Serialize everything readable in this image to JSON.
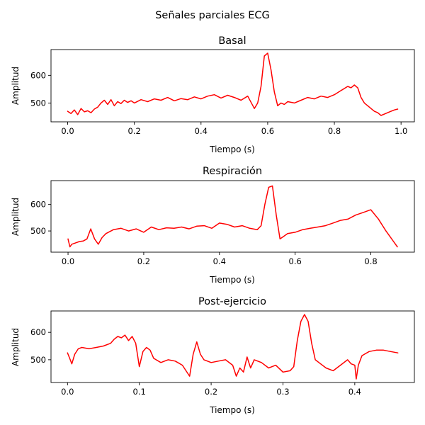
{
  "chart_data": {
    "suptitle": "Señales parciales ECG",
    "color": "#ff0000",
    "panels": [
      {
        "type": "line",
        "title": "Basal",
        "xlabel": "Tiempo (s)",
        "ylabel": "Amplitud",
        "xlim": [
          -0.05,
          1.04
        ],
        "ylim": [
          432,
          693
        ],
        "xticks": [
          0.0,
          0.2,
          0.4,
          0.6,
          0.8,
          1.0
        ],
        "xtick_labels": [
          "0.0",
          "0.2",
          "0.4",
          "0.6",
          "0.8",
          "1.0"
        ],
        "yticks": [
          500,
          600
        ],
        "ytick_labels": [
          "500",
          "600"
        ],
        "x": [
          0.0,
          0.01,
          0.02,
          0.03,
          0.04,
          0.05,
          0.06,
          0.07,
          0.08,
          0.09,
          0.1,
          0.11,
          0.12,
          0.13,
          0.14,
          0.15,
          0.16,
          0.17,
          0.18,
          0.19,
          0.2,
          0.22,
          0.24,
          0.26,
          0.28,
          0.3,
          0.32,
          0.34,
          0.36,
          0.38,
          0.4,
          0.42,
          0.44,
          0.46,
          0.48,
          0.5,
          0.52,
          0.54,
          0.56,
          0.57,
          0.58,
          0.59,
          0.6,
          0.61,
          0.62,
          0.63,
          0.64,
          0.65,
          0.66,
          0.68,
          0.7,
          0.72,
          0.74,
          0.76,
          0.78,
          0.8,
          0.82,
          0.84,
          0.85,
          0.86,
          0.87,
          0.88,
          0.89,
          0.9,
          0.91,
          0.92,
          0.93,
          0.94,
          0.95,
          0.96,
          0.97,
          0.98,
          0.99
        ],
        "y": [
          470,
          462,
          475,
          458,
          480,
          468,
          472,
          465,
          478,
          485,
          500,
          510,
          495,
          512,
          490,
          505,
          498,
          510,
          502,
          508,
          500,
          512,
          505,
          515,
          510,
          520,
          508,
          516,
          512,
          522,
          515,
          525,
          530,
          518,
          528,
          520,
          510,
          525,
          480,
          500,
          560,
          670,
          680,
          620,
          540,
          490,
          500,
          495,
          505,
          500,
          510,
          520,
          515,
          525,
          520,
          530,
          545,
          560,
          555,
          565,
          555,
          520,
          500,
          490,
          480,
          470,
          465,
          455,
          460,
          465,
          470,
          475,
          478
        ]
      },
      {
        "type": "line",
        "title": "Respiración",
        "xlabel": "Tiempo (s)",
        "ylabel": "Amplitud",
        "xlim": [
          -0.045,
          0.915
        ],
        "ylim": [
          420,
          690
        ],
        "xticks": [
          0.0,
          0.2,
          0.4,
          0.6,
          0.8
        ],
        "xtick_labels": [
          "0.0",
          "0.2",
          "0.4",
          "0.6",
          "0.8"
        ],
        "yticks": [
          500,
          600
        ],
        "ytick_labels": [
          "500",
          "600"
        ],
        "x": [
          0.0,
          0.005,
          0.01,
          0.02,
          0.03,
          0.04,
          0.05,
          0.06,
          0.07,
          0.08,
          0.09,
          0.1,
          0.12,
          0.14,
          0.16,
          0.18,
          0.2,
          0.22,
          0.24,
          0.26,
          0.28,
          0.3,
          0.32,
          0.34,
          0.36,
          0.38,
          0.4,
          0.42,
          0.44,
          0.46,
          0.48,
          0.5,
          0.51,
          0.52,
          0.53,
          0.54,
          0.55,
          0.56,
          0.57,
          0.58,
          0.6,
          0.62,
          0.64,
          0.66,
          0.68,
          0.7,
          0.72,
          0.74,
          0.76,
          0.78,
          0.8,
          0.82,
          0.84,
          0.85,
          0.86,
          0.87
        ],
        "y": [
          470,
          440,
          450,
          455,
          460,
          462,
          470,
          508,
          470,
          450,
          475,
          490,
          505,
          510,
          500,
          508,
          495,
          515,
          505,
          512,
          510,
          515,
          508,
          518,
          520,
          510,
          530,
          525,
          515,
          520,
          510,
          505,
          520,
          600,
          665,
          670,
          560,
          470,
          480,
          490,
          495,
          505,
          510,
          515,
          520,
          530,
          540,
          545,
          560,
          570,
          580,
          545,
          500,
          480,
          460,
          440
        ]
      },
      {
        "type": "line",
        "title": "Post-ejercicio",
        "xlabel": "Tiempo (s)",
        "ylabel": "Amplitud",
        "xlim": [
          -0.023,
          0.483
        ],
        "ylim": [
          417,
          678
        ],
        "xticks": [
          0.0,
          0.1,
          0.2,
          0.3,
          0.4
        ],
        "xtick_labels": [
          "0.0",
          "0.1",
          "0.2",
          "0.3",
          "0.4"
        ],
        "yticks": [
          500,
          600
        ],
        "ytick_labels": [
          "500",
          "600"
        ],
        "x": [
          0.0,
          0.003,
          0.006,
          0.01,
          0.015,
          0.02,
          0.03,
          0.04,
          0.05,
          0.06,
          0.065,
          0.07,
          0.075,
          0.08,
          0.085,
          0.09,
          0.095,
          0.1,
          0.105,
          0.11,
          0.115,
          0.12,
          0.13,
          0.14,
          0.15,
          0.16,
          0.17,
          0.175,
          0.18,
          0.185,
          0.19,
          0.2,
          0.21,
          0.22,
          0.23,
          0.235,
          0.24,
          0.245,
          0.25,
          0.255,
          0.26,
          0.27,
          0.28,
          0.29,
          0.3,
          0.31,
          0.315,
          0.32,
          0.325,
          0.33,
          0.335,
          0.34,
          0.345,
          0.35,
          0.36,
          0.37,
          0.38,
          0.39,
          0.395,
          0.4,
          0.402,
          0.405,
          0.41,
          0.42,
          0.43,
          0.44,
          0.45,
          0.46
        ],
        "y": [
          525,
          505,
          485,
          520,
          540,
          545,
          540,
          545,
          550,
          560,
          575,
          585,
          580,
          590,
          570,
          585,
          560,
          475,
          530,
          545,
          535,
          505,
          490,
          500,
          495,
          480,
          440,
          520,
          565,
          520,
          500,
          490,
          495,
          500,
          480,
          440,
          470,
          455,
          510,
          470,
          500,
          490,
          470,
          480,
          455,
          460,
          475,
          570,
          640,
          665,
          640,
          560,
          500,
          490,
          470,
          460,
          480,
          500,
          485,
          480,
          430,
          480,
          515,
          530,
          535,
          535,
          530,
          525
        ]
      }
    ]
  }
}
